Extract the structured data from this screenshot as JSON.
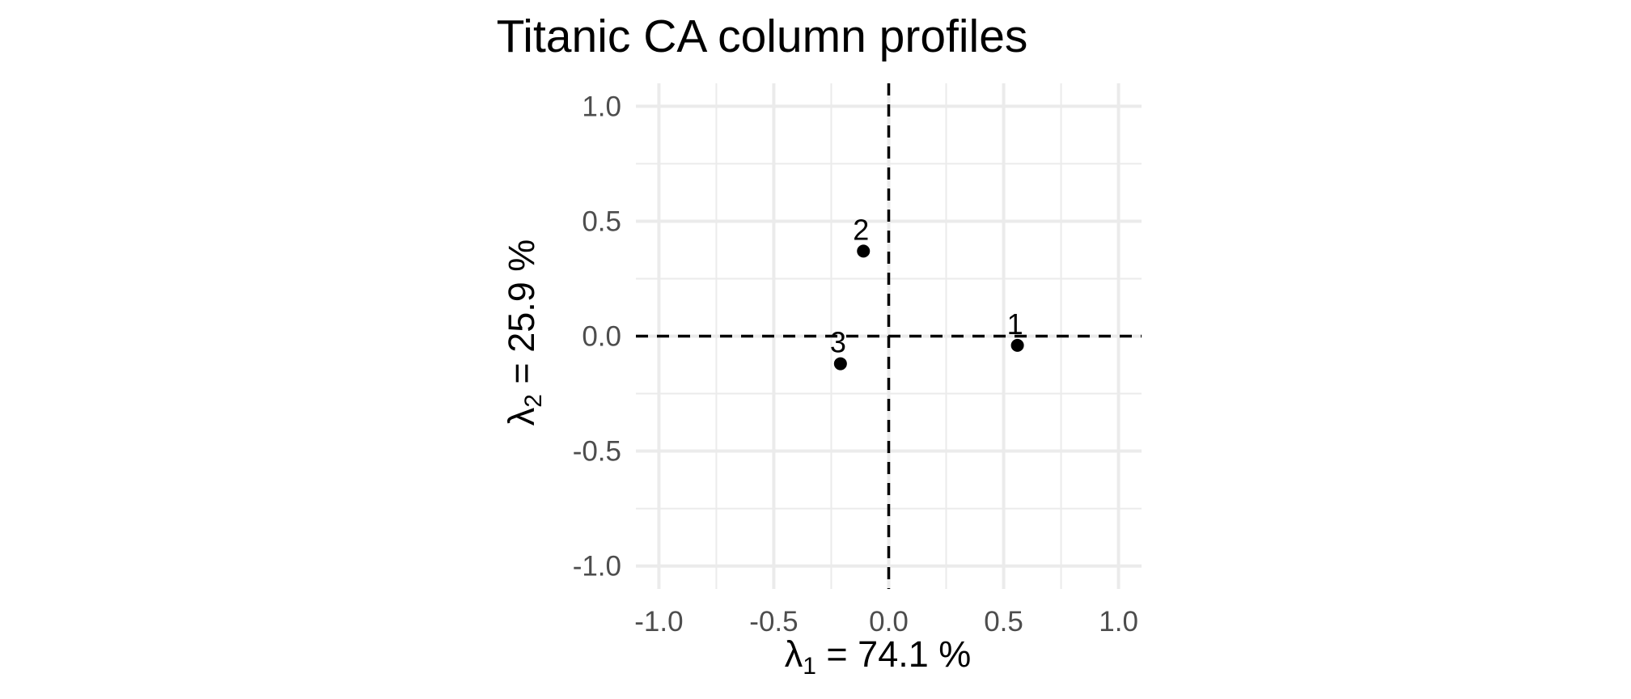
{
  "chart_data": {
    "type": "scatter",
    "title": "Titanic CA column profiles",
    "xlabel": {
      "symbol": "λ",
      "sub": "1",
      "rest": " = 74.1 %"
    },
    "ylabel": {
      "symbol": "λ",
      "sub": "2",
      "rest": " = 25.9 %"
    },
    "xlim": [
      -1.1,
      1.1
    ],
    "ylim": [
      -1.1,
      1.1
    ],
    "x_ticks": [
      -1.0,
      -0.5,
      0.0,
      0.5,
      1.0
    ],
    "y_ticks": [
      -1.0,
      -0.5,
      0.0,
      0.5,
      1.0
    ],
    "x_tick_labels": [
      "-1.0",
      "-0.5",
      "0.0",
      "0.5",
      "1.0"
    ],
    "y_tick_labels": [
      "-1.0",
      "-0.5",
      "0.0",
      "0.5",
      "1.0"
    ],
    "grid": true,
    "reference_lines": {
      "x": 0,
      "y": 0,
      "style": "dashed"
    },
    "points": [
      {
        "label": "1",
        "x": 0.56,
        "y": -0.04
      },
      {
        "label": "2",
        "x": -0.11,
        "y": 0.37
      },
      {
        "label": "3",
        "x": -0.21,
        "y": -0.12
      }
    ],
    "colors": {
      "grid": "#ebebeb",
      "point": "#000000",
      "reference": "#000000"
    }
  }
}
